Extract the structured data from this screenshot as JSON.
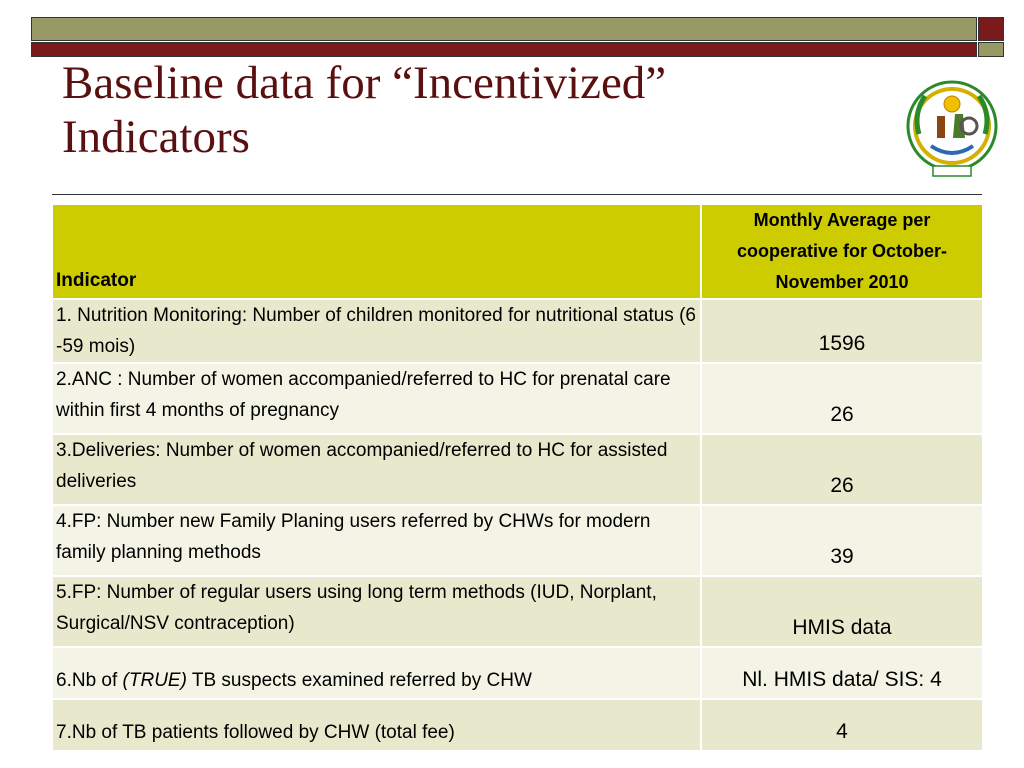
{
  "slide": {
    "title_lines": [
      "Baseline data for “Incentivized”",
      "Indicators"
    ],
    "emblem_icon": "rwanda-coat-of-arms-icon"
  },
  "table": {
    "headers": {
      "indicator": "Indicator",
      "monthly_average": "Monthly Average per cooperative for October-November 2010"
    },
    "rows": [
      {
        "indicator": "1. Nutrition Monitoring: Number of children monitored for nutritional status (6 -59 mois)",
        "value": "1596"
      },
      {
        "indicator": "2.ANC : Number of women accompanied/referred to HC for prenatal care within first 4 months of pregnancy",
        "value": "26"
      },
      {
        "indicator": "3.Deliveries: Number of women accompanied/referred to HC for assisted deliveries",
        "value": "26"
      },
      {
        "indicator": "4.FP: Number new Family Planing users referred by CHWs for modern family planning methods",
        "value": "39"
      },
      {
        "indicator": "5.FP: Number  of regular users using long term methods (IUD, Norplant, Surgical/NSV contraception)",
        "value": "HMIS data"
      },
      {
        "indicator_prefix": "6.Nb of ",
        "indicator_em": "(TRUE)",
        "indicator_suffix": " TB suspects examined referred by CHW",
        "value": "Nl. HMIS data/ SIS: 4"
      },
      {
        "indicator": "7.Nb of TB patients followed by CHW (total fee)",
        "value": "4"
      }
    ]
  },
  "colors": {
    "title": "#5a1010",
    "header_bg": "#cccc00",
    "row_odd": "#e8e8cc",
    "row_even": "#f4f4e6",
    "bar_olive": "#999966",
    "bar_maroon": "#7a1a1a"
  }
}
